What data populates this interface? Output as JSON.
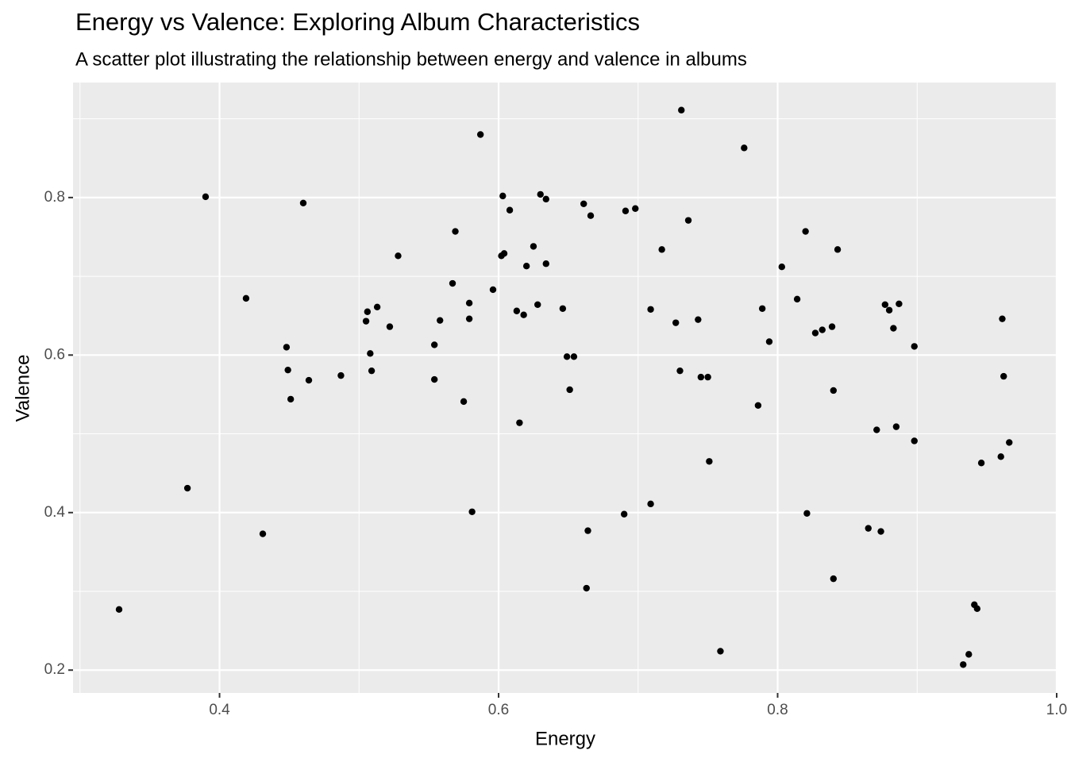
{
  "chart_data": {
    "type": "scatter",
    "title": "Energy vs Valence: Exploring Album Characteristics",
    "subtitle": "A scatter plot illustrating the relationship between energy and valence in albums",
    "x_label": "Energy",
    "y_label": "Valence",
    "color": "#000000",
    "grid": true,
    "minor_grid": true,
    "xlim": [
      0.295,
      1.0
    ],
    "ylim": [
      0.171,
      0.946
    ],
    "xticks": [
      {
        "value": 0.4,
        "label": "0.4"
      },
      {
        "value": 0.6,
        "label": "0.6"
      },
      {
        "value": 0.8,
        "label": "0.8"
      },
      {
        "value": 1.0,
        "label": "1.0"
      }
    ],
    "yticks": [
      {
        "value": 0.2,
        "label": "0.2"
      },
      {
        "value": 0.4,
        "label": "0.4"
      },
      {
        "value": 0.6,
        "label": "0.6"
      },
      {
        "value": 0.8,
        "label": "0.8"
      }
    ],
    "x": [
      0.328,
      0.377,
      0.39,
      0.419,
      0.431,
      0.46,
      0.448,
      0.449,
      0.451,
      0.464,
      0.487,
      0.506,
      0.505,
      0.513,
      0.508,
      0.509,
      0.522,
      0.528,
      0.554,
      0.554,
      0.558,
      0.567,
      0.569,
      0.575,
      0.579,
      0.579,
      0.581,
      0.587,
      0.596,
      0.602,
      0.604,
      0.603,
      0.608,
      0.613,
      0.618,
      0.615,
      0.62,
      0.625,
      0.628,
      0.63,
      0.634,
      0.634,
      0.646,
      0.649,
      0.654,
      0.651,
      0.661,
      0.666,
      0.664,
      0.663,
      0.69,
      0.691,
      0.698,
      0.709,
      0.709,
      0.717,
      0.727,
      0.73,
      0.731,
      0.736,
      0.743,
      0.745,
      0.75,
      0.751,
      0.759,
      0.776,
      0.786,
      0.789,
      0.794,
      0.803,
      0.814,
      0.82,
      0.821,
      0.827,
      0.832,
      0.839,
      0.84,
      0.843,
      0.84,
      0.865,
      0.874,
      0.871,
      0.877,
      0.88,
      0.887,
      0.883,
      0.885,
      0.898,
      0.898,
      0.933,
      0.937,
      0.941,
      0.943,
      0.946,
      0.96,
      0.961,
      0.962,
      0.966
    ],
    "values": [
      0.277,
      0.431,
      0.801,
      0.672,
      0.373,
      0.793,
      0.61,
      0.581,
      0.544,
      0.568,
      0.574,
      0.655,
      0.643,
      0.661,
      0.602,
      0.58,
      0.636,
      0.726,
      0.613,
      0.569,
      0.644,
      0.691,
      0.757,
      0.541,
      0.666,
      0.646,
      0.401,
      0.88,
      0.683,
      0.726,
      0.729,
      0.802,
      0.784,
      0.656,
      0.651,
      0.514,
      0.713,
      0.738,
      0.664,
      0.804,
      0.798,
      0.716,
      0.659,
      0.598,
      0.598,
      0.556,
      0.792,
      0.777,
      0.377,
      0.304,
      0.398,
      0.783,
      0.786,
      0.658,
      0.411,
      0.734,
      0.641,
      0.58,
      0.911,
      0.771,
      0.645,
      0.572,
      0.572,
      0.465,
      0.224,
      0.863,
      0.536,
      0.659,
      0.617,
      0.712,
      0.671,
      0.757,
      0.399,
      0.628,
      0.632,
      0.636,
      0.555,
      0.734,
      0.316,
      0.38,
      0.376,
      0.505,
      0.664,
      0.657,
      0.665,
      0.634,
      0.509,
      0.611,
      0.491,
      0.207,
      0.22,
      0.283,
      0.278,
      0.463,
      0.471,
      0.646,
      0.573,
      0.489
    ]
  }
}
